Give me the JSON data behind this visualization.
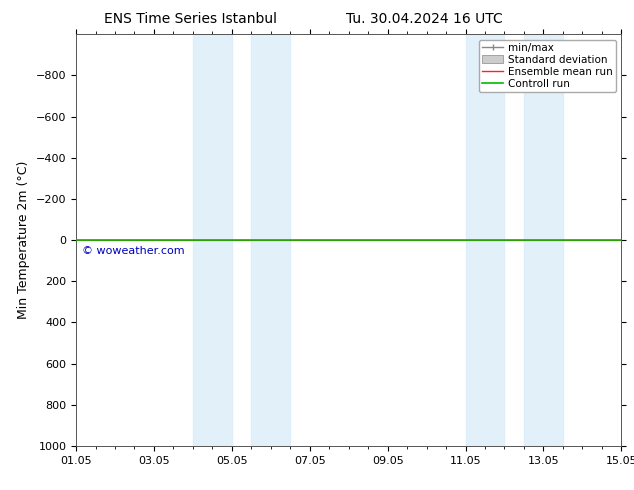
{
  "title_left": "ENS Time Series Istanbul",
  "title_right": "Tu. 30.04.2024 16 UTC",
  "ylabel": "Min Temperature 2m (°C)",
  "ylim_bottom": -1000,
  "ylim_top": 1000,
  "yticks": [
    -800,
    -600,
    -400,
    -200,
    0,
    200,
    400,
    600,
    800,
    1000
  ],
  "xtick_labels": [
    "01.05",
    "03.05",
    "05.05",
    "07.05",
    "09.05",
    "11.05",
    "13.05",
    "15.05"
  ],
  "xtick_positions": [
    0,
    2,
    4,
    6,
    8,
    10,
    12,
    14
  ],
  "xlim": [
    0,
    14
  ],
  "blue_shade_regions": [
    [
      3.0,
      4.0
    ],
    [
      4.5,
      5.5
    ],
    [
      10.0,
      11.0
    ],
    [
      11.5,
      12.5
    ]
  ],
  "control_run_y": 0,
  "ensemble_mean_y": 0,
  "watermark": "© woweather.com",
  "watermark_color": "#0000bb",
  "legend_labels": [
    "min/max",
    "Standard deviation",
    "Ensemble mean run",
    "Controll run"
  ],
  "legend_line_color": "#888888",
  "legend_std_color": "#cccccc",
  "legend_ens_color": "#ff2222",
  "legend_ctrl_color": "#00bb00",
  "bg_color": "#ffffff",
  "title_fontsize": 10,
  "axis_label_fontsize": 9,
  "tick_fontsize": 8,
  "legend_fontsize": 7.5
}
